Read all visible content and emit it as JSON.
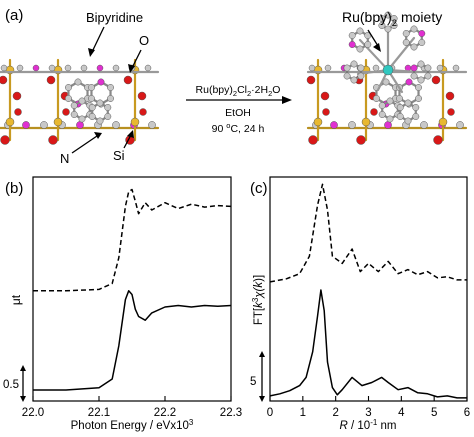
{
  "panel_a": {
    "tag": "(a)",
    "label_bipyridine": "Bipyridine",
    "label_o": "O",
    "label_n": "N",
    "label_si": "Si",
    "label_moiety": "Ru(bpy)",
    "label_moiety_sub": "2",
    "label_moiety_tail": " moiety",
    "reagent": "Ru(bpy)",
    "reagent_sub": "2",
    "reagent_mid": "Cl",
    "reagent_sub2": "2",
    "reagent_tail": "·2H",
    "reagent_sub3": "2",
    "reagent_end": "O",
    "solvent": "EtOH",
    "conditions_temp": "90 ",
    "conditions_sup": "o",
    "conditions_tail": "C, 24 h"
  },
  "colors": {
    "si": "#e8b830",
    "o": "#d81818",
    "n": "#e030d0",
    "c": "#c8c8c8",
    "ru": "#30c8c0"
  },
  "chart_data": [
    {
      "type": "line",
      "panel": "(b)",
      "xlabel": "Photon Energy / eVx10",
      "xlabel_sup": "3",
      "ylabel": "μt",
      "xlim": [
        22.0,
        22.3
      ],
      "xticks": [
        "22.0",
        "22.1",
        "22.2",
        "22.3"
      ],
      "scale_bar": "0.5",
      "series": [
        {
          "style": "dashed",
          "x": [
            22.0,
            22.05,
            22.1,
            22.12,
            22.13,
            22.14,
            22.145,
            22.15,
            22.155,
            22.16,
            22.17,
            22.18,
            22.2,
            22.22,
            22.24,
            22.26,
            22.28,
            22.3
          ],
          "y": [
            0.0,
            0.0,
            0.02,
            0.1,
            0.45,
            1.15,
            1.35,
            1.38,
            1.22,
            1.05,
            1.2,
            1.1,
            1.2,
            1.12,
            1.18,
            1.14,
            1.16,
            1.15
          ]
        },
        {
          "style": "solid",
          "x": [
            22.0,
            22.05,
            22.1,
            22.12,
            22.13,
            22.14,
            22.145,
            22.15,
            22.155,
            22.16,
            22.17,
            22.18,
            22.2,
            22.22,
            22.24,
            22.26,
            22.28,
            22.3
          ],
          "y": [
            -1.35,
            -1.35,
            -1.32,
            -1.2,
            -0.75,
            -0.12,
            0.0,
            -0.05,
            -0.25,
            -0.35,
            -0.4,
            -0.3,
            -0.22,
            -0.2,
            -0.22,
            -0.2,
            -0.21,
            -0.2
          ]
        }
      ]
    },
    {
      "type": "line",
      "panel": "(c)",
      "xlabel_pre": "R",
      "xlabel": " / 10",
      "xlabel_sup": "-1",
      "xlabel_tail": " nm",
      "ylabel_pre": "FT[",
      "ylabel_k": "k",
      "ylabel_sup": "3",
      "ylabel_chi": "χ(",
      "ylabel_k2": "k",
      "ylabel_tail": ")]",
      "xlim": [
        0,
        6
      ],
      "xticks": [
        "0",
        "1",
        "2",
        "3",
        "4",
        "5",
        "6"
      ],
      "scale_bar": "5",
      "series": [
        {
          "style": "dashed",
          "x": [
            0,
            0.5,
            0.9,
            1.2,
            1.45,
            1.6,
            1.75,
            1.9,
            2.2,
            2.5,
            2.75,
            3.0,
            3.3,
            3.6,
            3.9,
            4.2,
            4.5,
            4.8,
            5.1,
            5.4,
            5.7,
            6.0
          ],
          "y": [
            0.0,
            0.3,
            0.8,
            2.5,
            7.5,
            9.5,
            7.0,
            2.5,
            1.8,
            3.2,
            1.0,
            1.8,
            1.0,
            2.0,
            0.8,
            1.2,
            0.7,
            1.0,
            0.4,
            0.5,
            0.2,
            0.2
          ]
        },
        {
          "style": "solid",
          "x": [
            0,
            0.3,
            0.6,
            0.9,
            1.1,
            1.3,
            1.45,
            1.55,
            1.65,
            1.75,
            1.9,
            2.05,
            2.2,
            2.5,
            2.8,
            3.1,
            3.4,
            3.6,
            3.9,
            4.2,
            4.5,
            4.8,
            5.1,
            5.4,
            5.7,
            6.0
          ],
          "y": [
            0.2,
            0.4,
            0.7,
            1.2,
            2.0,
            4.5,
            8.0,
            10.5,
            8.5,
            3.5,
            1.0,
            0.3,
            0.8,
            2.0,
            1.2,
            1.5,
            2.0,
            1.5,
            0.8,
            1.0,
            0.5,
            0.4,
            0.1,
            0.2,
            0.0,
            0.0
          ]
        }
      ]
    }
  ]
}
